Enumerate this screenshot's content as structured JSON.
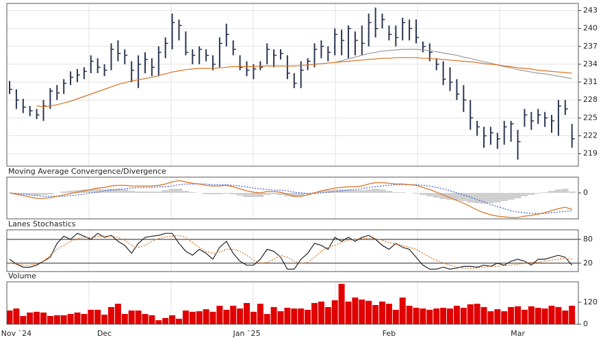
{
  "chart_data": [
    {
      "type": "ohlc",
      "color": "#2b3550",
      "grid": true,
      "grid_color": "#e2e2e2",
      "ylim": [
        216.9,
        244.2
      ],
      "yticks": [
        219,
        222,
        225,
        228,
        231,
        234,
        237,
        240,
        243
      ],
      "high": [
        231.2,
        229.8,
        228.2,
        227.0,
        226.5,
        228.0,
        230.0,
        230.5,
        231.5,
        232.8,
        233.2,
        233.5,
        235.5,
        235.0,
        234.0,
        237.5,
        238.0,
        236.5,
        234.5,
        235.5,
        236.0,
        235.0,
        237.0,
        238.5,
        242.5,
        241.5,
        239.5,
        236.5,
        237.0,
        236.5,
        235.5,
        238.5,
        240.8,
        238.0,
        235.5,
        234.5,
        234.0,
        234.5,
        237.5,
        236.5,
        236.5,
        235.5,
        232.5,
        234.5,
        235.0,
        237.5,
        238.0,
        237.0,
        240.0,
        239.8,
        240.5,
        239.5,
        240.5,
        242.5,
        243.5,
        242.5,
        240.5,
        240.5,
        241.8,
        241.5,
        241.5,
        237.8,
        237.5,
        235.0,
        234.5,
        233.5,
        231.5,
        230.5,
        228.0,
        224.5,
        223.5,
        223.5,
        222.5,
        224.5,
        224.5,
        223.0,
        226.5,
        226.0,
        226.5,
        226.0,
        225.5,
        228.0,
        228.0,
        224.0
      ],
      "low": [
        229.0,
        226.5,
        225.8,
        225.3,
        224.8,
        224.5,
        226.5,
        228.0,
        229.0,
        230.5,
        231.0,
        231.5,
        232.5,
        232.5,
        232.0,
        233.0,
        234.5,
        234.0,
        231.0,
        230.0,
        232.5,
        232.0,
        232.0,
        235.0,
        236.5,
        238.0,
        235.5,
        234.0,
        234.0,
        234.5,
        233.0,
        233.5,
        237.0,
        235.5,
        233.0,
        232.0,
        231.5,
        233.0,
        234.0,
        233.5,
        234.8,
        231.5,
        230.0,
        230.0,
        233.0,
        233.5,
        235.0,
        234.5,
        235.5,
        235.5,
        235.0,
        235.5,
        235.5,
        237.0,
        238.5,
        240.0,
        238.0,
        237.0,
        238.0,
        238.0,
        237.5,
        236.0,
        234.5,
        233.0,
        230.5,
        229.5,
        228.0,
        226.0,
        223.0,
        222.0,
        220.0,
        220.5,
        219.8,
        220.5,
        221.0,
        218.0,
        223.5,
        223.0,
        224.0,
        223.5,
        222.5,
        222.0,
        225.5,
        220.0
      ],
      "close": [
        229.8,
        228.0,
        226.8,
        226.2,
        225.5,
        227.0,
        229.5,
        229.2,
        230.8,
        231.8,
        232.2,
        232.8,
        234.5,
        233.5,
        233.0,
        236.5,
        235.8,
        235.5,
        233.0,
        234.0,
        234.8,
        233.5,
        236.0,
        237.5,
        241.0,
        240.5,
        236.0,
        235.5,
        236.5,
        235.5,
        234.0,
        237.5,
        239.0,
        236.5,
        233.5,
        233.0,
        233.2,
        233.5,
        236.5,
        235.5,
        235.8,
        232.5,
        230.8,
        233.0,
        234.5,
        236.5,
        237.0,
        236.0,
        239.0,
        238.0,
        240.0,
        238.0,
        237.5,
        241.0,
        240.0,
        241.5,
        239.0,
        238.5,
        241.0,
        240.0,
        238.5,
        237.0,
        236.0,
        234.0,
        231.5,
        231.0,
        229.0,
        228.0,
        225.0,
        223.5,
        222.0,
        222.5,
        221.5,
        223.5,
        224.0,
        221.0,
        225.5,
        224.5,
        225.5,
        225.0,
        224.5,
        227.0,
        226.5,
        221.5
      ],
      "overlays": [
        {
          "color": "#9a9a9a",
          "values": [
            null,
            null,
            null,
            null,
            null,
            null,
            null,
            null,
            null,
            null,
            null,
            null,
            null,
            null,
            null,
            null,
            null,
            null,
            null,
            null,
            null,
            null,
            null,
            null,
            null,
            null,
            null,
            null,
            null,
            null,
            null,
            null,
            null,
            null,
            null,
            null,
            null,
            null,
            null,
            null,
            null,
            null,
            null,
            null,
            null,
            null,
            null,
            null,
            234.3,
            234.6,
            234.9,
            235.2,
            235.5,
            235.8,
            236.0,
            236.2,
            236.3,
            236.4,
            236.5,
            236.5,
            236.5,
            236.4,
            236.3,
            236.1,
            235.9,
            235.7,
            235.5,
            235.2,
            235.0,
            234.7,
            234.4,
            234.2,
            233.9,
            233.6,
            233.4,
            233.1,
            232.9,
            232.7,
            232.5,
            232.4,
            232.2,
            232.0,
            231.8,
            231.6
          ]
        },
        {
          "color": "#d9701e",
          "values": [
            null,
            null,
            null,
            null,
            227.0,
            226.9,
            227.0,
            227.2,
            227.5,
            227.8,
            228.2,
            228.6,
            229.0,
            229.4,
            229.8,
            230.2,
            230.6,
            230.9,
            231.2,
            231.4,
            231.6,
            231.8,
            232.1,
            232.4,
            232.7,
            232.9,
            233.1,
            233.2,
            233.3,
            233.3,
            233.3,
            233.4,
            233.5,
            233.6,
            233.6,
            233.6,
            233.6,
            233.7,
            233.7,
            233.7,
            233.7,
            233.7,
            233.7,
            233.8,
            233.9,
            234.0,
            234.1,
            234.2,
            234.3,
            234.4,
            234.5,
            234.6,
            234.7,
            234.8,
            234.9,
            235.0,
            235.0,
            235.1,
            235.1,
            235.1,
            235.1,
            235.0,
            235.0,
            234.9,
            234.8,
            234.7,
            234.6,
            234.5,
            234.4,
            234.3,
            234.1,
            234.0,
            233.9,
            233.7,
            233.6,
            233.4,
            233.3,
            233.2,
            233.0,
            232.9,
            232.8,
            232.7,
            232.6,
            232.5
          ]
        }
      ]
    },
    {
      "type": "macd",
      "title": "Moving Average Convergence/Divergence",
      "grid": false,
      "ylim": [
        -3.8,
        2.3
      ],
      "yticks": [
        0
      ],
      "histogram": {
        "color": "#cfcfcf",
        "values": [
          0,
          -0.1,
          -0.2,
          -0.3,
          -0.4,
          -0.3,
          -0.2,
          0,
          0.2,
          0.3,
          0.4,
          0.5,
          0.5,
          0.6,
          0.5,
          0.6,
          0.6,
          0.5,
          0.3,
          0.2,
          0.2,
          0.2,
          0.2,
          0.4,
          0.6,
          0.6,
          0.3,
          0.1,
          0,
          -0.2,
          -0.2,
          -0.2,
          -0.1,
          -0.2,
          -0.4,
          -0.6,
          -0.6,
          -0.6,
          -0.3,
          -0.2,
          -0.3,
          -0.5,
          -0.6,
          -0.5,
          -0.2,
          0.1,
          0.3,
          0.4,
          0.5,
          0.5,
          0.5,
          0.4,
          0.4,
          0.5,
          0.6,
          0.5,
          0.3,
          0.1,
          0.1,
          0,
          -0.1,
          -0.3,
          -0.5,
          -0.7,
          -0.9,
          -1.0,
          -1.1,
          -1.2,
          -1.4,
          -1.5,
          -1.6,
          -1.5,
          -1.4,
          -1.2,
          -1.0,
          -0.8,
          -0.5,
          -0.3,
          -0.1,
          0.1,
          0.3,
          0.5,
          0.6,
          0.2
        ]
      },
      "macd": {
        "color": "#d9701e",
        "values": [
          0.0,
          -0.2,
          -0.4,
          -0.6,
          -0.8,
          -0.8,
          -0.7,
          -0.5,
          -0.3,
          -0.1,
          0.1,
          0.3,
          0.5,
          0.7,
          0.8,
          1.0,
          1.1,
          1.1,
          1.0,
          1.0,
          1.0,
          1.0,
          1.1,
          1.3,
          1.6,
          1.8,
          1.6,
          1.4,
          1.3,
          1.1,
          1.0,
          1.0,
          1.1,
          0.9,
          0.6,
          0.3,
          0.1,
          0.0,
          0.2,
          0.2,
          0.1,
          -0.2,
          -0.5,
          -0.5,
          -0.3,
          0.0,
          0.3,
          0.5,
          0.7,
          0.8,
          0.9,
          0.9,
          1.0,
          1.3,
          1.5,
          1.5,
          1.4,
          1.3,
          1.3,
          1.2,
          1.1,
          0.8,
          0.5,
          0.1,
          -0.3,
          -0.7,
          -1.1,
          -1.5,
          -2.0,
          -2.5,
          -2.9,
          -3.2,
          -3.4,
          -3.5,
          -3.6,
          -3.6,
          -3.4,
          -3.3,
          -3.1,
          -2.9,
          -2.6,
          -2.3,
          -2.1,
          -2.4
        ]
      },
      "signal": {
        "color": "#3a5bd0",
        "style": "dotted",
        "values": [
          0.0,
          -0.1,
          -0.2,
          -0.3,
          -0.4,
          -0.5,
          -0.5,
          -0.5,
          -0.5,
          -0.4,
          -0.3,
          -0.2,
          0.0,
          0.1,
          0.3,
          0.4,
          0.5,
          0.6,
          0.7,
          0.8,
          0.8,
          0.8,
          0.9,
          0.9,
          1.0,
          1.2,
          1.3,
          1.3,
          1.3,
          1.3,
          1.2,
          1.2,
          1.2,
          1.1,
          1.0,
          0.9,
          0.7,
          0.6,
          0.5,
          0.4,
          0.4,
          0.3,
          0.1,
          0.0,
          -0.1,
          -0.1,
          0.0,
          0.1,
          0.2,
          0.3,
          0.4,
          0.5,
          0.6,
          0.8,
          0.9,
          1.0,
          1.1,
          1.2,
          1.2,
          1.2,
          1.2,
          1.1,
          1.0,
          0.8,
          0.6,
          0.3,
          0.0,
          -0.3,
          -0.6,
          -1.0,
          -1.3,
          -1.7,
          -2.0,
          -2.3,
          -2.6,
          -2.8,
          -2.9,
          -3.0,
          -3.0,
          -3.0,
          -2.9,
          -2.8,
          -2.7,
          -2.6
        ]
      }
    },
    {
      "type": "line",
      "title": "Lanes Stochastics",
      "grid": true,
      "grid_color": "#222",
      "ylim": [
        -1,
        104
      ],
      "yticks": [
        20,
        80
      ],
      "series": [
        {
          "color": "#222222",
          "values": [
            30,
            18,
            10,
            10,
            15,
            25,
            35,
            70,
            88,
            80,
            95,
            88,
            80,
            95,
            85,
            90,
            75,
            65,
            45,
            70,
            85,
            88,
            90,
            95,
            95,
            70,
            50,
            40,
            55,
            45,
            30,
            60,
            75,
            45,
            25,
            15,
            15,
            30,
            55,
            50,
            35,
            5,
            5,
            30,
            45,
            70,
            65,
            55,
            85,
            75,
            85,
            75,
            85,
            90,
            80,
            65,
            55,
            70,
            60,
            55,
            35,
            15,
            5,
            5,
            10,
            5,
            8,
            12,
            12,
            10,
            15,
            12,
            20,
            15,
            25,
            30,
            25,
            15,
            30,
            30,
            35,
            40,
            35,
            15
          ]
        },
        {
          "color": "#d9701e",
          "style": "dotted",
          "values": [
            20,
            18,
            15,
            15,
            18,
            25,
            40,
            55,
            65,
            75,
            82,
            85,
            85,
            87,
            88,
            88,
            85,
            78,
            65,
            60,
            65,
            75,
            82,
            86,
            88,
            90,
            85,
            72,
            60,
            50,
            45,
            48,
            55,
            55,
            50,
            40,
            28,
            20,
            22,
            30,
            40,
            35,
            25,
            20,
            22,
            35,
            50,
            60,
            65,
            72,
            78,
            80,
            82,
            83,
            82,
            78,
            72,
            68,
            65,
            60,
            55,
            45,
            35,
            28,
            20,
            15,
            10,
            8,
            7,
            8,
            10,
            12,
            12,
            14,
            15,
            17,
            20,
            22,
            22,
            25,
            28,
            30,
            33,
            30
          ]
        }
      ]
    },
    {
      "type": "bar",
      "title": "Volume",
      "color": "#e00000",
      "grid": false,
      "ylim": [
        0,
        232
      ],
      "yticks": [
        0,
        120
      ],
      "categories": [
        null,
        "Nov `24",
        null,
        null,
        null,
        null,
        null,
        null,
        null,
        null,
        null,
        null,
        null,
        null,
        "Dec",
        null,
        null,
        null,
        null,
        null,
        null,
        null,
        null,
        null,
        null,
        null,
        null,
        null,
        null,
        null,
        null,
        null,
        null,
        null,
        null,
        "Jan `25",
        null,
        null,
        null,
        null,
        null,
        null,
        null,
        null,
        null,
        null,
        null,
        null,
        null,
        null,
        null,
        null,
        null,
        null,
        null,
        null,
        "Feb",
        null,
        null,
        null,
        null,
        null,
        null,
        null,
        null,
        null,
        null,
        null,
        null,
        null,
        null,
        null,
        null,
        null,
        null,
        "Mar",
        null,
        null,
        null,
        null,
        null,
        null,
        null,
        null
      ],
      "values": [
        75,
        86,
        45,
        64,
        68,
        64,
        45,
        49,
        49,
        56,
        64,
        56,
        79,
        79,
        52,
        94,
        112,
        56,
        75,
        75,
        56,
        49,
        22,
        34,
        49,
        30,
        75,
        68,
        71,
        82,
        68,
        101,
        79,
        101,
        86,
        116,
        68,
        112,
        56,
        94,
        71,
        90,
        86,
        86,
        79,
        116,
        124,
        94,
        131,
        221,
        124,
        146,
        135,
        128,
        105,
        124,
        112,
        79,
        146,
        101,
        90,
        86,
        79,
        86,
        90,
        86,
        101,
        90,
        109,
        112,
        94,
        71,
        82,
        71,
        94,
        98,
        79,
        98,
        90,
        86,
        101,
        94,
        75,
        101
      ]
    }
  ]
}
